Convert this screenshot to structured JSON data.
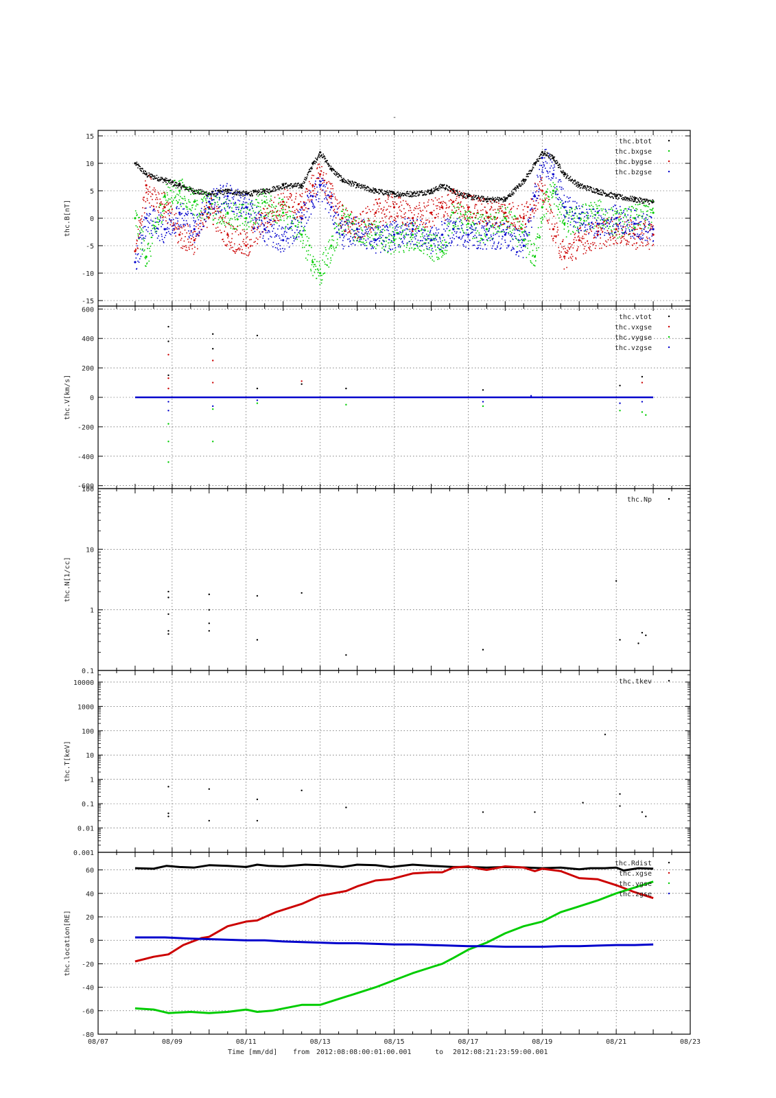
{
  "page_title": "-",
  "footer": {
    "xlabel": "Time [mm/dd]",
    "from_label": "from",
    "from_value": "2012:08:08:00:01:00.001",
    "to_label": "to",
    "to_value": "2012:08:21:23:59:00.001"
  },
  "x_ticks": [
    "08/07",
    "08/09",
    "08/11",
    "08/13",
    "08/15",
    "08/17",
    "08/19",
    "08/21",
    "08/23"
  ],
  "colors": {
    "black": "#000000",
    "red": "#cc0000",
    "green": "#00cc00",
    "blue": "#0000cc"
  },
  "chart_data": [
    {
      "id": "B",
      "type": "scatter",
      "ylabel": "thc.B[nT]",
      "scale": "linear",
      "ylim": [
        -16,
        16
      ],
      "ytick_values": [
        -15,
        -10,
        -5,
        0,
        5,
        10,
        15
      ],
      "ytick_labels": [
        "-15",
        "-10",
        "-5",
        "0",
        "5",
        "10",
        "15"
      ],
      "x_unit": "day of August 2012",
      "series": [
        {
          "name": "thc.btot",
          "color": "black",
          "x": [
            8.0,
            8.3,
            8.8,
            9.2,
            9.6,
            10.0,
            10.5,
            11.0,
            11.5,
            12.0,
            12.5,
            12.8,
            13.0,
            13.3,
            13.6,
            14.0,
            14.5,
            15.0,
            15.5,
            16.0,
            16.3,
            16.6,
            17.0,
            17.5,
            18.0,
            18.5,
            18.8,
            19.0,
            19.3,
            19.6,
            20.0,
            20.5,
            21.0,
            21.5,
            22.0
          ],
          "y": [
            10,
            8,
            7,
            6,
            5,
            4.5,
            5,
            4.5,
            5,
            6,
            6,
            10,
            12,
            9,
            7,
            6,
            5,
            4.5,
            4.5,
            5,
            6,
            5,
            4,
            3.5,
            3.5,
            7,
            10,
            12,
            11,
            8,
            6,
            5,
            4,
            3.5,
            3
          ]
        },
        {
          "name": "thc.bxgse",
          "color": "green",
          "x": [
            8.0,
            8.3,
            8.8,
            9.2,
            9.6,
            10.0,
            10.5,
            11.0,
            11.5,
            12.0,
            12.5,
            12.8,
            13.0,
            13.3,
            13.6,
            14.0,
            14.5,
            15.0,
            15.5,
            16.0,
            16.3,
            16.6,
            17.0,
            17.5,
            18.0,
            18.5,
            18.8,
            19.0,
            19.3,
            19.6,
            20.0,
            20.5,
            21.0,
            21.5,
            22.0
          ],
          "y": [
            0,
            -7,
            4,
            5,
            3,
            2,
            1,
            0,
            3,
            1,
            -3,
            -8,
            -10,
            -5,
            0,
            -2,
            -3,
            -4,
            -3,
            -5,
            -6,
            1,
            -1,
            -2,
            0,
            -4,
            -7,
            2,
            5,
            -1,
            0,
            1,
            -1,
            0,
            1
          ]
        },
        {
          "name": "thc.bygse",
          "color": "red",
          "x": [
            8.0,
            8.3,
            8.8,
            9.2,
            9.6,
            10.0,
            10.5,
            11.0,
            11.5,
            12.0,
            12.5,
            12.8,
            13.0,
            13.3,
            13.6,
            14.0,
            14.5,
            15.0,
            15.5,
            16.0,
            16.3,
            16.6,
            17.0,
            17.5,
            18.0,
            18.5,
            18.8,
            19.0,
            19.3,
            19.6,
            20.0,
            20.5,
            21.0,
            21.5,
            22.0
          ],
          "y": [
            -6,
            6,
            2,
            -3,
            -4,
            2,
            -3,
            -5,
            0,
            3,
            2,
            6,
            8,
            4,
            0,
            -2,
            1,
            2,
            0,
            1,
            2,
            3,
            2,
            1,
            1,
            0,
            4,
            5,
            -2,
            -7,
            -4,
            -3,
            -2,
            -3,
            -3
          ]
        },
        {
          "name": "thc.bzgse",
          "color": "blue",
          "x": [
            8.0,
            8.3,
            8.8,
            9.2,
            9.6,
            10.0,
            10.5,
            11.0,
            11.5,
            12.0,
            12.5,
            12.8,
            13.0,
            13.3,
            13.6,
            14.0,
            14.5,
            15.0,
            15.5,
            16.0,
            16.3,
            16.6,
            17.0,
            17.5,
            18.0,
            18.5,
            18.8,
            19.0,
            19.3,
            19.6,
            20.0,
            20.5,
            21.0,
            21.5,
            22.0
          ],
          "y": [
            -8,
            0,
            -2,
            1,
            -2,
            3,
            4,
            2,
            -2,
            -4,
            0,
            4,
            6,
            2,
            -3,
            -2,
            -4,
            -3,
            -2,
            -4,
            -3,
            -2,
            -3,
            -3,
            -3,
            -5,
            4,
            11,
            8,
            2,
            0,
            -1,
            0,
            -1,
            -2
          ]
        }
      ]
    },
    {
      "id": "V",
      "type": "scatter",
      "ylabel": "thc.V[km/s]",
      "scale": "linear",
      "ylim": [
        -620,
        620
      ],
      "ytick_values": [
        -600,
        -400,
        -200,
        0,
        200,
        400,
        600
      ],
      "ytick_labels": [
        "-600",
        "-400",
        "-200",
        "0",
        "200",
        "400",
        "600"
      ],
      "baseline": {
        "x": [
          8.0,
          22.0
        ],
        "y": 0,
        "color": "blue"
      },
      "series": [
        {
          "name": "thc.vtot",
          "color": "black",
          "x": [
            8.9,
            8.9,
            8.9,
            10.1,
            10.1,
            11.3,
            11.3,
            12.5,
            13.7,
            17.4,
            21.1,
            21.7
          ],
          "y": [
            480,
            380,
            150,
            430,
            330,
            420,
            60,
            90,
            60,
            50,
            80,
            140
          ]
        },
        {
          "name": "thc.vxgse",
          "color": "red",
          "x": [
            8.9,
            8.9,
            8.9,
            10.1,
            10.1,
            12.5,
            21.7
          ],
          "y": [
            290,
            130,
            60,
            250,
            100,
            110,
            100
          ]
        },
        {
          "name": "thc.vygse",
          "color": "green",
          "x": [
            8.9,
            8.9,
            8.9,
            10.1,
            10.1,
            11.3,
            13.7,
            17.4,
            21.1,
            21.7,
            21.8
          ],
          "y": [
            -440,
            -300,
            -180,
            -300,
            -80,
            -40,
            -50,
            -60,
            -90,
            -100,
            -120
          ]
        },
        {
          "name": "thc.vzgse",
          "color": "blue",
          "x": [
            8.9,
            8.9,
            10.1,
            11.3,
            17.4,
            18.7,
            21.1,
            21.7
          ],
          "y": [
            -90,
            -30,
            -60,
            -20,
            -30,
            10,
            -40,
            -30
          ]
        }
      ]
    },
    {
      "id": "N",
      "type": "scatter",
      "ylabel": "thc.N[1/cc]",
      "scale": "log",
      "ylim": [
        0.1,
        100
      ],
      "ytick_values": [
        0.1,
        1,
        10,
        100
      ],
      "ytick_labels": [
        "0.1",
        "1",
        "10",
        "100"
      ],
      "series": [
        {
          "name": "thc.Np",
          "color": "black",
          "x": [
            8.9,
            8.9,
            8.9,
            8.9,
            8.9,
            10.0,
            10.0,
            10.0,
            10.0,
            11.3,
            11.3,
            12.5,
            13.7,
            17.4,
            21.0,
            21.1,
            21.6,
            21.7,
            21.8
          ],
          "y": [
            2.0,
            1.6,
            0.85,
            0.45,
            0.4,
            1.8,
            1.0,
            0.6,
            0.45,
            1.7,
            0.32,
            1.9,
            0.18,
            0.22,
            3.0,
            0.32,
            0.28,
            0.42,
            0.38
          ]
        }
      ]
    },
    {
      "id": "T",
      "type": "scatter",
      "ylabel": "thc.T[keV]",
      "scale": "log",
      "ylim": [
        0.001,
        30000
      ],
      "ytick_values": [
        0.001,
        0.01,
        0.1,
        1,
        10,
        100,
        1000,
        10000
      ],
      "ytick_labels": [
        "0.001",
        "0.01",
        "0.1",
        "1",
        "10",
        "100",
        "1000",
        "10000"
      ],
      "series": [
        {
          "name": "thc.tkev",
          "color": "black",
          "x": [
            8.9,
            8.9,
            8.9,
            10.0,
            10.0,
            11.3,
            11.3,
            12.5,
            13.7,
            17.4,
            18.8,
            20.1,
            20.7,
            21.1,
            21.1,
            21.7,
            21.8
          ],
          "y": [
            0.5,
            0.04,
            0.03,
            0.4,
            0.02,
            0.15,
            0.02,
            0.35,
            0.07,
            0.045,
            0.045,
            0.11,
            70,
            0.25,
            0.08,
            0.045,
            0.03
          ]
        }
      ]
    },
    {
      "id": "location",
      "type": "line",
      "ylabel": "thc.location[RE]",
      "scale": "linear",
      "ylim": [
        -80,
        75
      ],
      "ytick_values": [
        -80,
        -60,
        -40,
        -20,
        0,
        20,
        40,
        60
      ],
      "ytick_labels": [
        "-80",
        "-60",
        "-40",
        "-20",
        "0",
        "20",
        "40",
        "60"
      ],
      "series": [
        {
          "name": "thc.Rdist",
          "color": "black",
          "x": [
            8.0,
            8.5,
            8.85,
            9.2,
            9.6,
            10.0,
            10.5,
            11.0,
            11.3,
            11.6,
            12.0,
            12.6,
            13.0,
            13.6,
            14.0,
            14.5,
            14.9,
            15.5,
            16.0,
            16.6,
            17.0,
            17.5,
            18.0,
            18.6,
            19.0,
            19.5,
            20.0,
            20.3,
            20.7,
            21.0,
            21.2,
            21.6,
            22.0
          ],
          "y": [
            61.5,
            61.0,
            63.5,
            62.5,
            62.0,
            64.0,
            63.5,
            62.5,
            64.5,
            63.5,
            63.0,
            64.5,
            64.0,
            62.5,
            64.5,
            64.0,
            62.5,
            64.5,
            63.5,
            62.5,
            62.5,
            62.0,
            62.5,
            62.0,
            61.5,
            62.0,
            60.5,
            61.5,
            61.5,
            62.0,
            59.5,
            61.5,
            61.0
          ]
        },
        {
          "name": "thc.xgse",
          "color": "red",
          "x": [
            8.0,
            8.5,
            8.9,
            9.3,
            9.8,
            10.0,
            10.5,
            11.0,
            11.3,
            11.8,
            12.5,
            13.0,
            13.7,
            14.0,
            14.5,
            14.9,
            15.5,
            16.0,
            16.3,
            16.6,
            17.0,
            17.3,
            17.5,
            18.0,
            18.5,
            18.8,
            19.0,
            19.5,
            20.0,
            20.5,
            21.0,
            21.5,
            22.0
          ],
          "y": [
            -18,
            -14,
            -12,
            -4,
            2,
            3,
            12,
            16,
            17,
            24,
            31,
            38,
            42,
            46,
            51,
            52,
            57,
            58,
            58,
            62,
            63,
            61,
            60,
            63,
            62,
            59,
            61,
            59,
            53,
            52,
            47,
            41,
            36
          ]
        },
        {
          "name": "thc.ygse",
          "color": "green",
          "x": [
            8.0,
            8.5,
            8.9,
            9.5,
            10.0,
            10.5,
            11.0,
            11.3,
            11.7,
            12.5,
            13.0,
            13.5,
            13.9,
            14.5,
            15.0,
            15.5,
            16.0,
            16.3,
            16.6,
            17.0,
            17.5,
            18.0,
            18.5,
            19.0,
            19.5,
            19.9,
            20.5,
            21.0,
            21.5,
            22.0
          ],
          "y": [
            -58,
            -59,
            -62,
            -61,
            -62,
            -61,
            -59,
            -61,
            -60,
            -55,
            -55,
            -50,
            -46,
            -40,
            -34,
            -28,
            -23,
            -20,
            -15,
            -8,
            -2,
            6,
            12,
            16,
            24,
            28,
            34,
            40,
            45,
            50
          ]
        },
        {
          "name": "thc.zgse",
          "color": "blue",
          "x": [
            8.0,
            8.8,
            9.5,
            10.0,
            10.5,
            11.0,
            11.5,
            12.0,
            12.5,
            13.0,
            13.5,
            14.0,
            14.5,
            15.0,
            15.5,
            16.0,
            16.5,
            17.0,
            17.5,
            18.0,
            18.5,
            19.0,
            19.5,
            20.0,
            20.5,
            21.0,
            21.5,
            22.0
          ],
          "y": [
            2.5,
            2.5,
            1.5,
            1,
            0.5,
            0,
            0,
            -1,
            -1.5,
            -2,
            -2.5,
            -2.5,
            -3,
            -3.5,
            -3.5,
            -4,
            -4.5,
            -5,
            -5,
            -5.5,
            -5.5,
            -5.5,
            -5,
            -5,
            -4.5,
            -4,
            -4,
            -3.5
          ]
        }
      ]
    }
  ]
}
